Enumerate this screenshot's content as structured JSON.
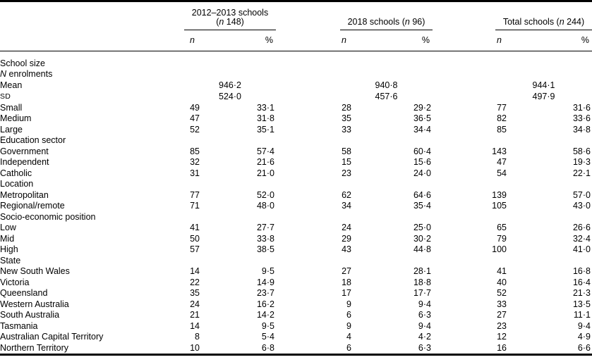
{
  "page": {
    "background_color": "#ffffff",
    "text_color": "#000000"
  },
  "table": {
    "column_groups": [
      {
        "title": "2012–2013 schools",
        "n_symbol": "n",
        "n_value": "148",
        "two_line": true
      },
      {
        "title": "2018 schools",
        "n_symbol": "n",
        "n_value": "96",
        "two_line": false
      },
      {
        "title": "Total schools",
        "n_symbol": "n",
        "n_value": "244",
        "two_line": false
      }
    ],
    "sub_headers": {
      "n": "n",
      "percent": "%"
    },
    "rows": [
      {
        "type": "section",
        "indent": 0,
        "label": "School size"
      },
      {
        "type": "section",
        "indent": 1,
        "label_parts": [
          {
            "text": "N",
            "style": "italic"
          },
          {
            "text": " enrolments"
          }
        ]
      },
      {
        "type": "stat",
        "indent": 2,
        "label": "Mean",
        "values": [
          "946·2",
          "940·8",
          "944·1"
        ]
      },
      {
        "type": "stat",
        "indent": 2,
        "label_parts": [
          {
            "text": "SD",
            "style": "smallcaps"
          }
        ],
        "values": [
          "524·0",
          "457·6",
          "497·9"
        ]
      },
      {
        "type": "data",
        "indent": 1,
        "label": "Small",
        "values": [
          "49",
          "33·1",
          "28",
          "29·2",
          "77",
          "31·6"
        ]
      },
      {
        "type": "data",
        "indent": 1,
        "label": "Medium",
        "values": [
          "47",
          "31·8",
          "35",
          "36·5",
          "82",
          "33·6"
        ]
      },
      {
        "type": "data",
        "indent": 1,
        "label": "Large",
        "values": [
          "52",
          "35·1",
          "33",
          "34·4",
          "85",
          "34·8"
        ]
      },
      {
        "type": "section",
        "indent": 0,
        "label": "Education sector"
      },
      {
        "type": "data",
        "indent": 1,
        "label": "Government",
        "values": [
          "85",
          "57·4",
          "58",
          "60·4",
          "143",
          "58·6"
        ]
      },
      {
        "type": "data",
        "indent": 1,
        "label": "Independent",
        "values": [
          "32",
          "21·6",
          "15",
          "15·6",
          "47",
          "19·3"
        ]
      },
      {
        "type": "data",
        "indent": 1,
        "label": "Catholic",
        "values": [
          "31",
          "21·0",
          "23",
          "24·0",
          "54",
          "22·1"
        ]
      },
      {
        "type": "section",
        "indent": 0,
        "label": "Location"
      },
      {
        "type": "data",
        "indent": 1,
        "label": "Metropolitan",
        "values": [
          "77",
          "52·0",
          "62",
          "64·6",
          "139",
          "57·0"
        ]
      },
      {
        "type": "data",
        "indent": 1,
        "label": "Regional/remote",
        "values": [
          "71",
          "48·0",
          "34",
          "35·4",
          "105",
          "43·0"
        ]
      },
      {
        "type": "section",
        "indent": 0,
        "label": "Socio-economic position"
      },
      {
        "type": "data",
        "indent": 1,
        "label": "Low",
        "values": [
          "41",
          "27·7",
          "24",
          "25·0",
          "65",
          "26·6"
        ]
      },
      {
        "type": "data",
        "indent": 1,
        "label": "Mid",
        "values": [
          "50",
          "33·8",
          "29",
          "30·2",
          "79",
          "32·4"
        ]
      },
      {
        "type": "data",
        "indent": 1,
        "label": "High",
        "values": [
          "57",
          "38·5",
          "43",
          "44·8",
          "100",
          "41·0"
        ]
      },
      {
        "type": "section",
        "indent": 0,
        "label": "State"
      },
      {
        "type": "data",
        "indent": 1,
        "label": "New South Wales",
        "values": [
          "14",
          "9·5",
          "27",
          "28·1",
          "41",
          "16·8"
        ]
      },
      {
        "type": "data",
        "indent": 1,
        "label": "Victoria",
        "values": [
          "22",
          "14·9",
          "18",
          "18·8",
          "40",
          "16·4"
        ]
      },
      {
        "type": "data",
        "indent": 1,
        "label": "Queensland",
        "values": [
          "35",
          "23·7",
          "17",
          "17·7",
          "52",
          "21·3"
        ]
      },
      {
        "type": "data",
        "indent": 1,
        "label": "Western Australia",
        "values": [
          "24",
          "16·2",
          "9",
          "9·4",
          "33",
          "13·5"
        ]
      },
      {
        "type": "data",
        "indent": 1,
        "label": "South Australia",
        "values": [
          "21",
          "14·2",
          "6",
          "6·3",
          "27",
          "11·1"
        ]
      },
      {
        "type": "data",
        "indent": 1,
        "label": "Tasmania",
        "values": [
          "14",
          "9·5",
          "9",
          "9·4",
          "23",
          "9·4"
        ]
      },
      {
        "type": "data",
        "indent": 1,
        "label": "Australian Capital Territory",
        "values": [
          "8",
          "5·4",
          "4",
          "4·2",
          "12",
          "4·9"
        ]
      },
      {
        "type": "data",
        "indent": 1,
        "label": "Northern Territory",
        "values": [
          "10",
          "6·8",
          "6",
          "6·3",
          "16",
          "6·6"
        ]
      }
    ]
  }
}
